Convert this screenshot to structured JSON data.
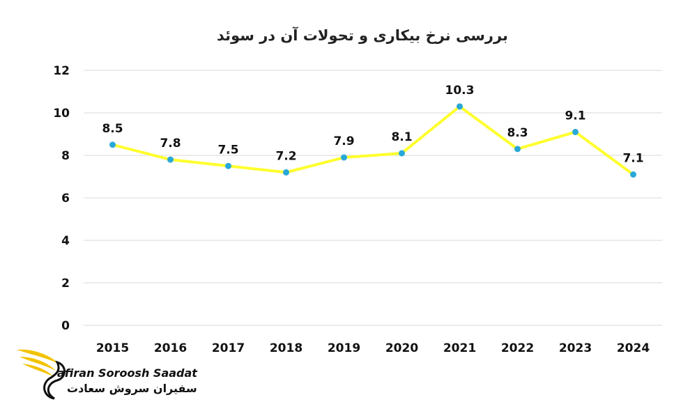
{
  "chart_data": {
    "type": "line",
    "title": "بررسی نرخ بیکاری و تحولات آن در سوئد",
    "categories": [
      "2015",
      "2016",
      "2017",
      "2018",
      "2019",
      "2020",
      "2021",
      "2022",
      "2023",
      "2024"
    ],
    "values": [
      8.5,
      7.8,
      7.5,
      7.2,
      7.9,
      8.1,
      10.3,
      8.3,
      9.1,
      7.1
    ],
    "data_labels": [
      "8.5",
      "7.8",
      "7.5",
      "7.2",
      "7.9",
      "8.1",
      "10.3",
      "8.3",
      "9.1",
      "7.1"
    ],
    "ylim": [
      0,
      12
    ],
    "yticks": [
      "0",
      "2",
      "4",
      "6",
      "8",
      "10",
      "12"
    ],
    "xlabel": "",
    "ylabel": "",
    "grid": true,
    "legend": "none",
    "line_color": "#ffff2e",
    "marker_color": "#29a8d8"
  },
  "logo": {
    "text_en": "afiran Soroosh Saadat",
    "text_fa": "سفیران سروش سعادت",
    "accent_color": "#f2c300"
  }
}
